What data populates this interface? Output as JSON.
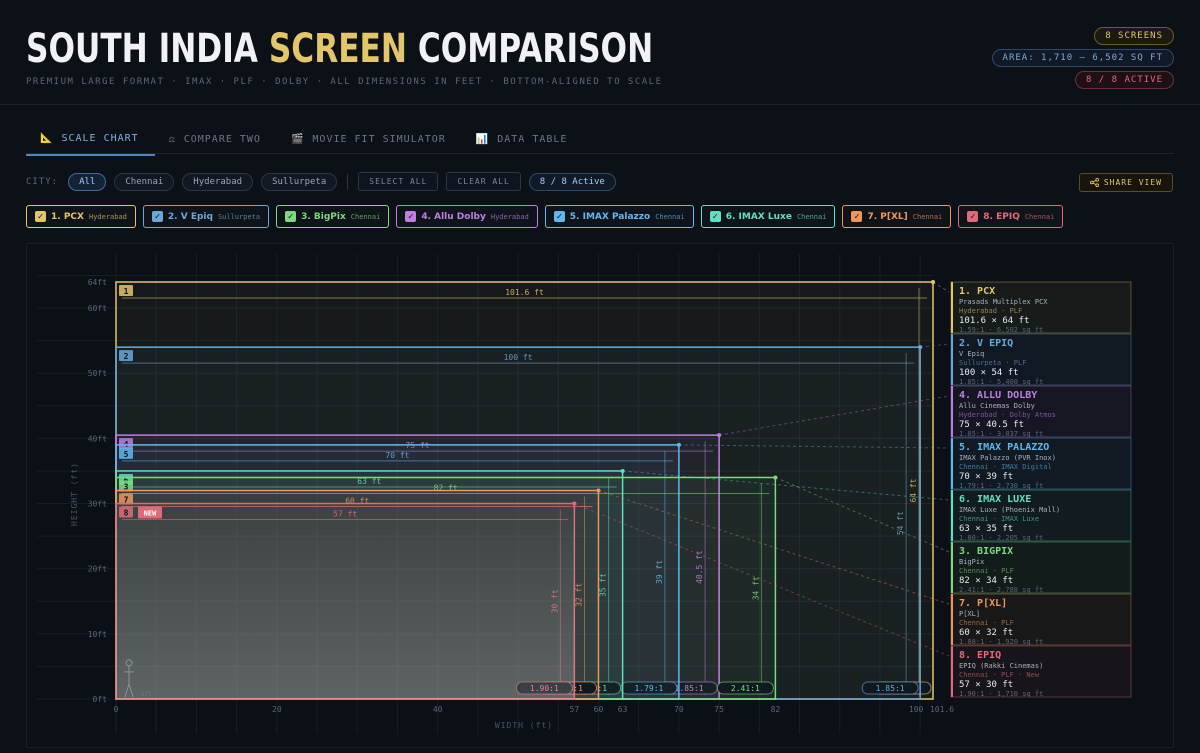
{
  "header": {
    "title_part1": "SOUTH INDIA ",
    "title_highlight": "SCREEN",
    "title_part2": " COMPARISON",
    "subtitle": "PREMIUM LARGE FORMAT · IMAX · PLF · DOLBY · ALL DIMENSIONS IN FEET · BOTTOM-ALIGNED TO SCALE",
    "badge_screens": "8 SCREENS",
    "badge_area": "AREA: 1,710 – 6,502 SQ FT",
    "badge_active": "8 / 8 ACTIVE"
  },
  "tabs": [
    {
      "icon": "📐",
      "label": "SCALE CHART"
    },
    {
      "icon": "⚖",
      "label": "COMPARE TWO"
    },
    {
      "icon": "🎬",
      "label": "MOVIE FIT SIMULATOR"
    },
    {
      "icon": "📊",
      "label": "DATA TABLE"
    }
  ],
  "filters": {
    "city_label": "CITY:",
    "cities": [
      "All",
      "Chennai",
      "Hyderabad",
      "Sullurpeta"
    ],
    "select_all": "SELECT ALL",
    "clear_all": "CLEAR ALL",
    "active_count": "8 / 8 Active",
    "share": "SHARE VIEW"
  },
  "colors": {
    "PCX": "#e3c56a",
    "VEpiq": "#6aa8d8",
    "BigPix": "#7fd87f",
    "AlluDolby": "#c07fe0",
    "IMAXPalazzo": "#5fb8f0",
    "IMAXLuxe": "#5fe0c0",
    "PXL": "#f0965a",
    "EPIQ": "#e06a7a"
  },
  "chips": [
    {
      "label": "1. PCX",
      "city": "Hyderabad",
      "color": "#e3c56a"
    },
    {
      "label": "2. V Epiq",
      "city": "Sullurpeta",
      "color": "#6aa8d8"
    },
    {
      "label": "3. BigPix",
      "city": "Chennai",
      "color": "#7fd87f"
    },
    {
      "label": "4. Allu Dolby",
      "city": "Hyderabad",
      "color": "#c07fe0"
    },
    {
      "label": "5. IMAX Palazzo",
      "city": "Chennai",
      "color": "#5fb8f0"
    },
    {
      "label": "6. IMAX Luxe",
      "city": "Chennai",
      "color": "#5fe0c0"
    },
    {
      "label": "7. P[XL]",
      "city": "Chennai",
      "color": "#f0965a"
    },
    {
      "label": "8. EPIQ",
      "city": "Chennai",
      "color": "#e06a7a"
    }
  ],
  "chart_data": {
    "type": "scale-rectangles",
    "xlabel": "WIDTH (ft)",
    "ylabel": "HEIGHT (ft)",
    "x_ticks": [
      "0",
      "20",
      "40",
      "57",
      "60",
      "63",
      "70",
      "75",
      "82",
      "100",
      "101.6"
    ],
    "y_ticks": [
      "0ft",
      "10ft",
      "20ft",
      "30ft",
      "40ft",
      "50ft",
      "60ft",
      "64ft"
    ],
    "xlim": [
      0,
      101.6
    ],
    "ylim": [
      0,
      64
    ],
    "human_label": "6ft",
    "new_badge": "NEW",
    "screens": [
      {
        "num": "1",
        "name": "PCX",
        "full": "Prasads Multiplex PCX",
        "meta": "Hyderabad · PLF",
        "dims": "101.6 × 64 ft",
        "stats": "1.59:1 · 6,502 sq ft",
        "width": 101.6,
        "height": 64,
        "w_label": "101.6 ft",
        "h_label": "64 ft",
        "ratio": "1.59:1",
        "color": "#e3c56a",
        "legend_title": "1. PCX"
      },
      {
        "num": "2",
        "name": "V Epiq",
        "full": "V Epiq",
        "meta": "Sullurpeta · PLF",
        "dims": "100 × 54 ft",
        "stats": "1.85:1 · 5,400 sq ft",
        "width": 100,
        "height": 54,
        "w_label": "100 ft",
        "h_label": "54 ft",
        "ratio": "1.85:1",
        "color": "#6aa8d8",
        "legend_title": "2. V EPIQ"
      },
      {
        "num": "4",
        "name": "Allu Dolby",
        "full": "Allu Cinemas Dolby",
        "meta": "Hyderabad · Dolby Atmos",
        "dims": "75 × 40.5 ft",
        "stats": "1.85:1 · 3,037 sq ft",
        "width": 75,
        "height": 40.5,
        "w_label": "75 ft",
        "h_label": "40.5 ft",
        "ratio": "1.85:1",
        "color": "#c07fe0",
        "legend_title": "4. ALLU DOLBY"
      },
      {
        "num": "5",
        "name": "IMAX Palazzo",
        "full": "IMAX Palazzo (PVR Inox)",
        "meta": "Chennai · IMAX Digital",
        "dims": "70 × 39 ft",
        "stats": "1.79:1 · 2,730 sq ft",
        "width": 70,
        "height": 39,
        "w_label": "70 ft",
        "h_label": "39 ft",
        "ratio": "1.79:1",
        "color": "#5fb8f0",
        "legend_title": "5. IMAX PALAZZO"
      },
      {
        "num": "6",
        "name": "IMAX Luxe",
        "full": "IMAX Luxe (Phoenix Mall)",
        "meta": "Chennai · IMAX Luxe",
        "dims": "63 × 35 ft",
        "stats": "1.80:1 · 2,205 sq ft",
        "width": 63,
        "height": 35,
        "w_label": "63 ft",
        "h_label": "35 ft",
        "ratio": "1.80:1",
        "color": "#5fe0c0",
        "legend_title": "6. IMAX LUXE"
      },
      {
        "num": "3",
        "name": "BigPix",
        "full": "BigPix",
        "meta": "Chennai · PLF",
        "dims": "82 × 34 ft",
        "stats": "2.41:1 · 2,788 sq ft",
        "width": 82,
        "height": 34,
        "w_label": "82 ft",
        "h_label": "34 ft",
        "ratio": "2.41:1",
        "color": "#7fd87f",
        "legend_title": "3. BIGPIX"
      },
      {
        "num": "7",
        "name": "P[XL]",
        "full": "P[XL]",
        "meta": "Chennai · PLF",
        "dims": "60 × 32 ft",
        "stats": "1.88:1 · 1,920 sq ft",
        "width": 60,
        "height": 32,
        "w_label": "60 ft",
        "h_label": "32 ft",
        "ratio": "1.88:1",
        "color": "#f0965a",
        "legend_title": "7. P[XL]"
      },
      {
        "num": "8",
        "name": "EPIQ",
        "full": "EPIQ (Rakki Cinemas)",
        "meta": "Chennai · PLF · New",
        "dims": "57 × 30 ft",
        "stats": "1.90:1 · 1,710 sq ft",
        "width": 57,
        "height": 30,
        "w_label": "57 ft",
        "h_label": "30 ft",
        "ratio": "1.90:1",
        "color": "#e06a7a",
        "legend_title": "8. EPIQ"
      }
    ]
  }
}
